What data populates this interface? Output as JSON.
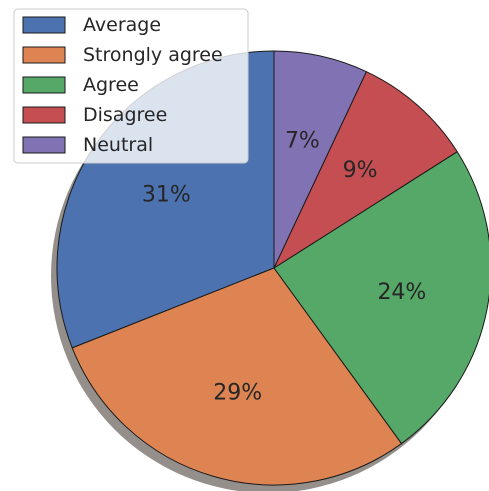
{
  "chart_data": {
    "type": "pie",
    "categories": [
      "Average",
      "Strongly agree",
      "Agree",
      "Disagree",
      "Neutral"
    ],
    "values": [
      31,
      29,
      24,
      9,
      7
    ],
    "labels": [
      "31%",
      "29%",
      "24%",
      "9%",
      "7%"
    ],
    "colors": [
      "#4c72b0",
      "#dd8452",
      "#55a868",
      "#c44e52",
      "#8172b3"
    ],
    "start_angle_deg": 90,
    "direction": "counterclockwise",
    "shadow": true,
    "legend": {
      "placement": "top-left",
      "entries": [
        "Average",
        "Strongly agree",
        "Agree",
        "Disagree",
        "Neutral"
      ]
    },
    "title": ""
  }
}
